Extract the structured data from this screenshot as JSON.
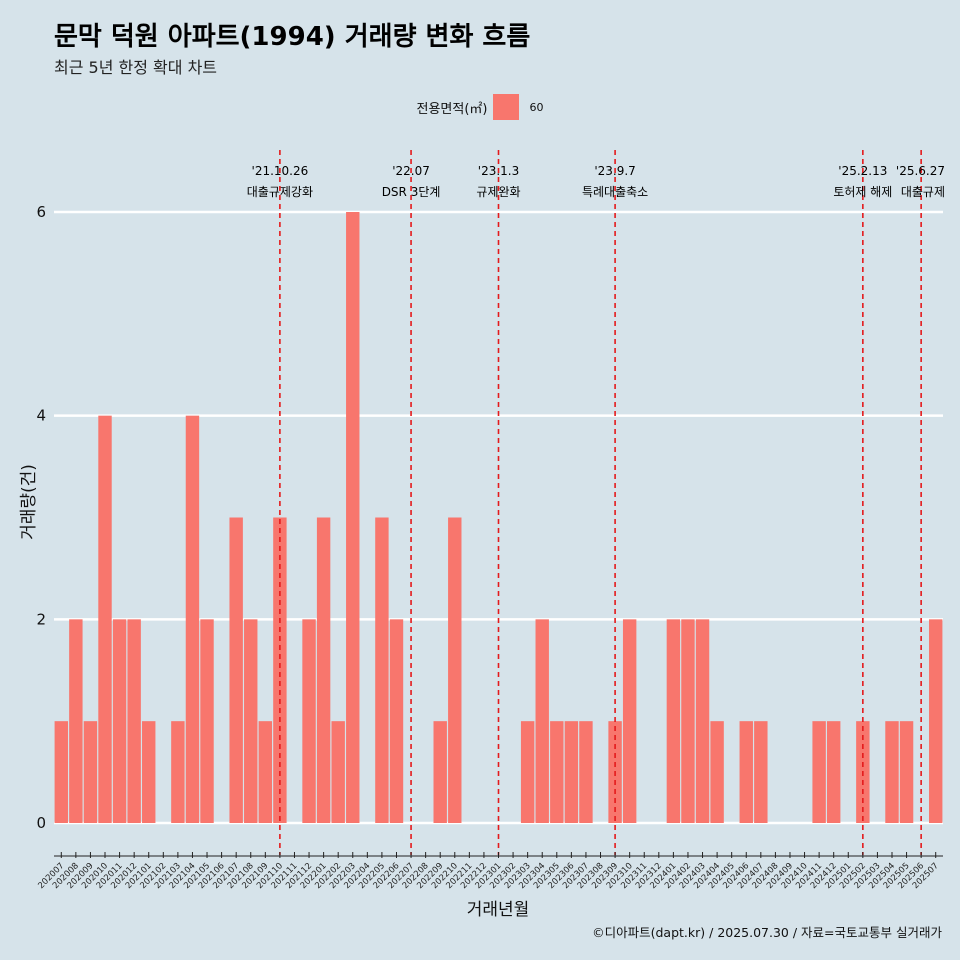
{
  "title": "문막 덕원 아파트(1994) 거래량 변화 흐름",
  "subtitle": "최근 5년 한정 확대 차트",
  "legend": {
    "title": "전용면적(㎡)",
    "item": "60"
  },
  "caption": "©디아파트(dapt.kr) / 2025.07.30 / 자료=국토교통부 실거래가",
  "colors": {
    "bar": "#f8766d",
    "background": "#d6e3ea",
    "event_line": "#e41a1c",
    "grid": "#ffffff"
  },
  "chart_data": {
    "type": "bar",
    "title": "문막 덕원 아파트(1994) 거래량 변화 흐름",
    "subtitle": "최근 5년 한정 확대 차트",
    "xlabel": "거래년월",
    "ylabel": "거래량(건)",
    "ylim": [
      0,
      6
    ],
    "yticks": [
      0,
      2,
      4,
      6
    ],
    "grid": true,
    "legend_position": "top",
    "categories": [
      "202007",
      "202008",
      "202009",
      "202010",
      "202011",
      "202012",
      "202101",
      "202102",
      "202103",
      "202104",
      "202105",
      "202106",
      "202107",
      "202108",
      "202109",
      "202110",
      "202111",
      "202112",
      "202201",
      "202202",
      "202203",
      "202204",
      "202205",
      "202206",
      "202207",
      "202208",
      "202209",
      "202210",
      "202211",
      "202212",
      "202301",
      "202302",
      "202303",
      "202304",
      "202305",
      "202306",
      "202307",
      "202308",
      "202309",
      "202310",
      "202311",
      "202312",
      "202401",
      "202402",
      "202403",
      "202404",
      "202405",
      "202406",
      "202407",
      "202408",
      "202409",
      "202410",
      "202411",
      "202412",
      "202501",
      "202502",
      "202503",
      "202504",
      "202505",
      "202506",
      "202507"
    ],
    "series": [
      {
        "name": "60",
        "values": [
          1,
          2,
          1,
          4,
          2,
          2,
          1,
          0,
          1,
          4,
          2,
          0,
          3,
          2,
          1,
          3,
          0,
          2,
          3,
          1,
          6,
          0,
          3,
          2,
          0,
          0,
          1,
          3,
          0,
          0,
          0,
          0,
          1,
          2,
          1,
          1,
          1,
          0,
          1,
          2,
          0,
          0,
          2,
          2,
          2,
          1,
          0,
          1,
          1,
          0,
          0,
          0,
          1,
          1,
          0,
          1,
          0,
          1,
          1,
          0,
          2
        ]
      }
    ],
    "events": [
      {
        "x": "202110",
        "label_top": "'21.10.26",
        "label_bottom": "대출규제강화"
      },
      {
        "x": "202207",
        "label_top": "'22.07",
        "label_bottom": "DSR 3단계"
      },
      {
        "x": "202301",
        "label_top": "'23.1.3",
        "label_bottom": "규제완화"
      },
      {
        "x": "202309",
        "label_top": "'23.9.7",
        "label_bottom": "특례대출축소"
      },
      {
        "x": "202502",
        "label_top": "'25.2.13",
        "label_bottom": "토허제 해제"
      },
      {
        "x": "202506",
        "label_top": "'25.6.27",
        "label_bottom": "대출규제"
      }
    ]
  }
}
